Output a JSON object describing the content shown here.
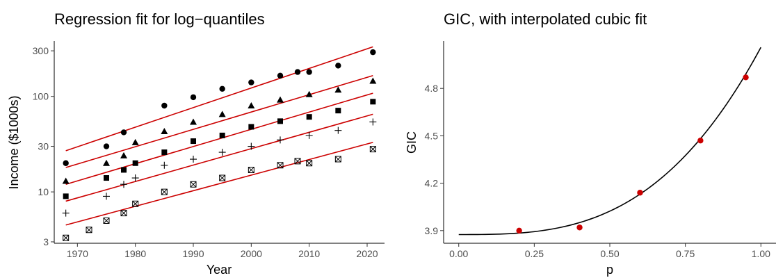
{
  "chart_data": [
    {
      "type": "scatter",
      "title": "Regression fit for log−quantiles",
      "xlabel": "Year",
      "ylabel": "Income ($1000s)",
      "xlim": [
        1966,
        2023
      ],
      "ylim": [
        2.9,
        380
      ],
      "yscale": "log",
      "xticks": [
        1970,
        1980,
        1990,
        2000,
        2010,
        2020
      ],
      "xtick_labels": [
        "1970",
        "1980",
        "1990",
        "2000",
        "2010",
        "2020"
      ],
      "yticks": [
        3,
        10,
        30,
        100,
        300
      ],
      "ytick_labels": [
        "3",
        "10",
        "30",
        "100",
        "300"
      ],
      "grid": false,
      "fit_color": "#cc0000",
      "series": [
        {
          "marker": "circle",
          "values": [
            {
              "year": 1968,
              "income": 20
            },
            {
              "year": 1975,
              "income": 30
            },
            {
              "year": 1978,
              "income": 42
            },
            {
              "year": 1985,
              "income": 80
            },
            {
              "year": 1990,
              "income": 98
            },
            {
              "year": 1995,
              "income": 120
            },
            {
              "year": 2000,
              "income": 140
            },
            {
              "year": 2005,
              "income": 165
            },
            {
              "year": 2008,
              "income": 180
            },
            {
              "year": 2010,
              "income": 180
            },
            {
              "year": 2015,
              "income": 210
            },
            {
              "year": 2021,
              "income": 290
            }
          ],
          "fit": [
            {
              "year": 1968,
              "income": 27
            },
            {
              "year": 2021,
              "income": 330
            }
          ]
        },
        {
          "marker": "triangle",
          "values": [
            {
              "year": 1968,
              "income": 13
            },
            {
              "year": 1975,
              "income": 20
            },
            {
              "year": 1978,
              "income": 24
            },
            {
              "year": 1980,
              "income": 33
            },
            {
              "year": 1985,
              "income": 43
            },
            {
              "year": 1990,
              "income": 54
            },
            {
              "year": 1995,
              "income": 65
            },
            {
              "year": 2000,
              "income": 80
            },
            {
              "year": 2005,
              "income": 92
            },
            {
              "year": 2010,
              "income": 105
            },
            {
              "year": 2015,
              "income": 117
            },
            {
              "year": 2021,
              "income": 145
            }
          ],
          "fit": [
            {
              "year": 1968,
              "income": 18
            },
            {
              "year": 2021,
              "income": 165
            }
          ]
        },
        {
          "marker": "square",
          "values": [
            {
              "year": 1968,
              "income": 9
            },
            {
              "year": 1975,
              "income": 14
            },
            {
              "year": 1978,
              "income": 17
            },
            {
              "year": 1980,
              "income": 20
            },
            {
              "year": 1985,
              "income": 26
            },
            {
              "year": 1990,
              "income": 34
            },
            {
              "year": 1995,
              "income": 39
            },
            {
              "year": 2000,
              "income": 48
            },
            {
              "year": 2005,
              "income": 55
            },
            {
              "year": 2010,
              "income": 61
            },
            {
              "year": 2015,
              "income": 71
            },
            {
              "year": 2021,
              "income": 88
            }
          ],
          "fit": [
            {
              "year": 1968,
              "income": 12
            },
            {
              "year": 2021,
              "income": 108
            }
          ]
        },
        {
          "marker": "plus",
          "values": [
            {
              "year": 1968,
              "income": 6
            },
            {
              "year": 1975,
              "income": 9
            },
            {
              "year": 1978,
              "income": 12
            },
            {
              "year": 1980,
              "income": 14
            },
            {
              "year": 1985,
              "income": 19
            },
            {
              "year": 1990,
              "income": 22
            },
            {
              "year": 1995,
              "income": 26
            },
            {
              "year": 2000,
              "income": 30
            },
            {
              "year": 2005,
              "income": 35
            },
            {
              "year": 2010,
              "income": 39
            },
            {
              "year": 2015,
              "income": 44
            },
            {
              "year": 2021,
              "income": 54
            }
          ],
          "fit": [
            {
              "year": 1968,
              "income": 8
            },
            {
              "year": 2021,
              "income": 65
            }
          ]
        },
        {
          "marker": "boxed-x",
          "values": [
            {
              "year": 1968,
              "income": 3.3
            },
            {
              "year": 1972,
              "income": 4
            },
            {
              "year": 1975,
              "income": 5
            },
            {
              "year": 1978,
              "income": 6
            },
            {
              "year": 1980,
              "income": 7.5
            },
            {
              "year": 1985,
              "income": 10
            },
            {
              "year": 1990,
              "income": 12
            },
            {
              "year": 1995,
              "income": 14
            },
            {
              "year": 2000,
              "income": 17
            },
            {
              "year": 2005,
              "income": 19
            },
            {
              "year": 2008,
              "income": 21
            },
            {
              "year": 2010,
              "income": 20
            },
            {
              "year": 2015,
              "income": 22
            },
            {
              "year": 2021,
              "income": 28
            }
          ],
          "fit": [
            {
              "year": 1968,
              "income": 4.5
            },
            {
              "year": 2021,
              "income": 33
            }
          ]
        }
      ]
    },
    {
      "type": "scatter",
      "title": "GIC, with interpolated cubic fit",
      "xlabel": "p",
      "ylabel": "GIC",
      "xlim": [
        -0.05,
        1.05
      ],
      "ylim": [
        3.82,
        5.1
      ],
      "xticks": [
        0,
        0.25,
        0.5,
        0.75,
        1
      ],
      "xtick_labels": [
        "0.00",
        "0.25",
        "0.50",
        "0.75",
        "1.00"
      ],
      "yticks": [
        3.9,
        4.2,
        4.5,
        4.8
      ],
      "ytick_labels": [
        "3.9",
        "4.2",
        "4.5",
        "4.8"
      ],
      "grid": false,
      "point_color": "#cc0000",
      "curve_color": "#000000",
      "points": [
        {
          "p": 0.2,
          "gic": 3.9
        },
        {
          "p": 0.4,
          "gic": 3.92
        },
        {
          "p": 0.6,
          "gic": 4.14
        },
        {
          "p": 0.8,
          "gic": 4.47
        },
        {
          "p": 0.95,
          "gic": 4.87
        }
      ],
      "curve": {
        "intercept": 3.875,
        "cubic": 1.185,
        "p_from": 0,
        "p_to": 1
      }
    }
  ]
}
